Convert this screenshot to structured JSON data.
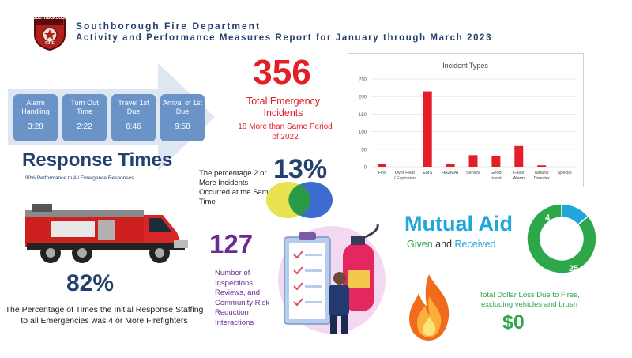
{
  "header": {
    "title": "Southborough Fire Department",
    "subtitle": "Activity and Performance Measures Report for January through March 2023",
    "logo_text": "SOUTHBOROUGH",
    "logo_text_bottom": "FIRE"
  },
  "response_times": {
    "steps": [
      {
        "label": "Alarm Handling",
        "value": "3:28"
      },
      {
        "label": "Turn Out Time",
        "value": "2:22"
      },
      {
        "label": "Travel 1st Due",
        "value": "6:46"
      },
      {
        "label": "Arrival of 1st Due",
        "value": "9:58"
      }
    ],
    "title": "Response Times",
    "subtitle": "90% Performance to All Emergence Responses"
  },
  "emergency": {
    "count": "356",
    "label": "Total Emergency Incidents",
    "note": "18 More than Same Period of 2022"
  },
  "simultaneous": {
    "percent": "13%",
    "label": "The percentage 2 or More Incidents Occurred at the Same Time"
  },
  "staffing": {
    "percent": "82%",
    "label": "The Percentage of Times the Initial Response Staffing to all Emergencies was 4 or More Firefighters"
  },
  "inspections": {
    "count": "127",
    "label": "Number of Inspections, Reviews, and Community Risk Reduction Interactions"
  },
  "mutual_aid": {
    "title": "Mutual Aid",
    "given": "Given",
    "and": "and",
    "received": "Received",
    "given_value": "4",
    "received_value": "25"
  },
  "fire_loss": {
    "label": "Total Dollar Loss Due to Fires, excluding vehicles and brush",
    "value": "$0"
  },
  "colors": {
    "navy": "#24406e",
    "red": "#e21e26",
    "mutual_blue": "#1fa7dc",
    "green": "#2da74a",
    "purple": "#6a2c91"
  },
  "chart_data": {
    "type": "bar",
    "title": "Incident Types",
    "categories": [
      "Fire",
      "Over Heat / Explosion",
      "EMS",
      "HAZMAT",
      "Service",
      "Good Intent",
      "False Alarm",
      "Natural Disaster",
      "Special"
    ],
    "values": [
      7,
      0,
      215,
      8,
      33,
      31,
      59,
      4,
      0
    ],
    "ylim": [
      0,
      250
    ],
    "yticks": [
      "0",
      "50",
      "100",
      "150",
      "200",
      "250"
    ],
    "grid": true,
    "legend": false,
    "color": "#e21e26"
  }
}
